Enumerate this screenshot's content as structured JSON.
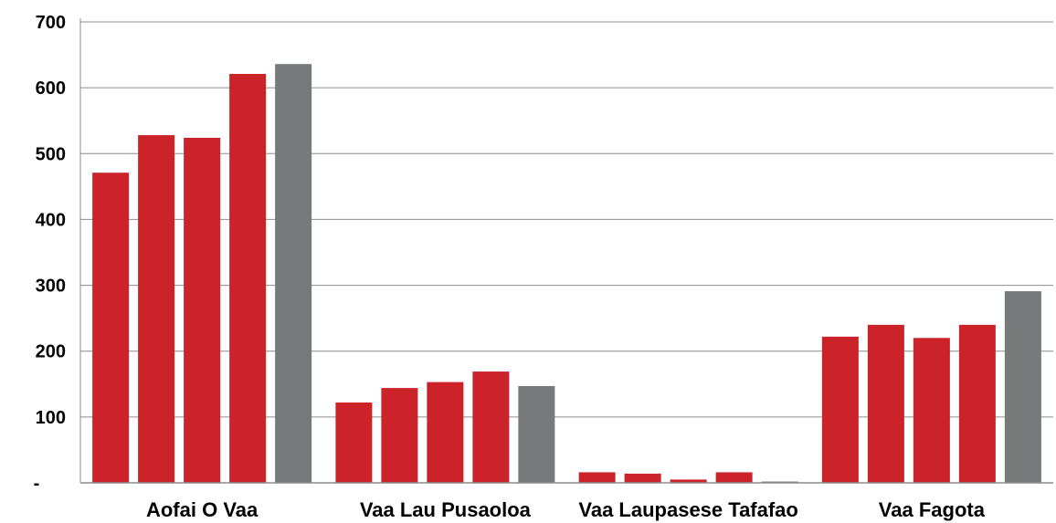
{
  "chart_data": {
    "type": "bar",
    "categories": [
      "Aofai O Vaa",
      "Vaa Lau Pusaoloa",
      "Vaa Laupasese Tafafao",
      "Vaa Fagota"
    ],
    "series": [
      {
        "values": [
          471,
          122,
          16,
          222
        ],
        "color": "#cc2229"
      },
      {
        "values": [
          528,
          144,
          14,
          240
        ],
        "color": "#cc2229"
      },
      {
        "values": [
          524,
          153,
          5,
          220
        ],
        "color": "#cc2229"
      },
      {
        "values": [
          621,
          169,
          16,
          240
        ],
        "color": "#cc2229"
      },
      {
        "values": [
          636,
          147,
          2,
          291
        ],
        "color": "#767a7a"
      }
    ],
    "ylim": [
      0,
      700
    ],
    "yticks": [
      0,
      100,
      200,
      300,
      400,
      500,
      600,
      700
    ],
    "ytick_labels": [
      "-",
      "100",
      "200",
      "300",
      "400",
      "500",
      "600",
      "700"
    ],
    "grid": true,
    "title": "",
    "xlabel": "",
    "ylabel": ""
  }
}
